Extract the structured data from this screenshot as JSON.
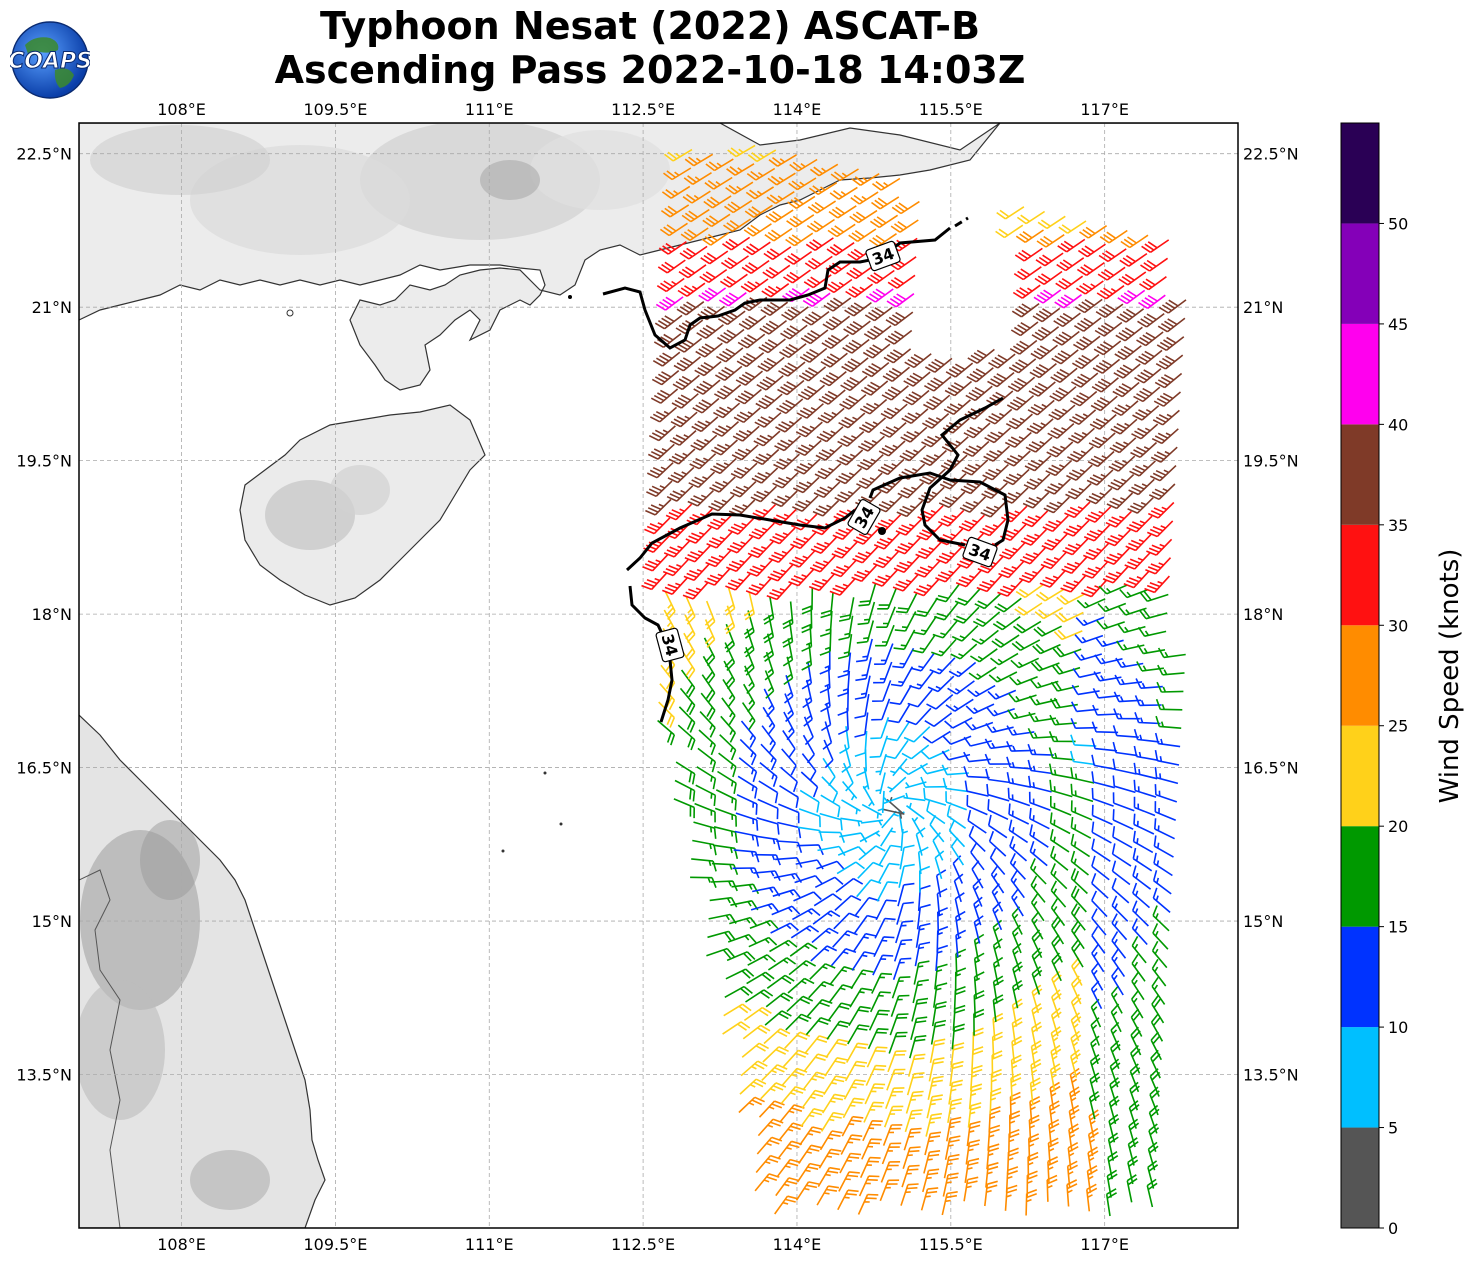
{
  "title": {
    "line1": "Typhoon Nesat (2022) ASCAT-B",
    "line2": "Ascending Pass 2022-10-18 14:03Z"
  },
  "logo": {
    "text": "COAPS",
    "icon": "globe-logo-icon"
  },
  "map": {
    "lon_range": [
      107.0,
      118.3
    ],
    "lat_range": [
      12.0,
      22.8
    ],
    "lon_ticks": [
      "108°E",
      "109.5°E",
      "111°E",
      "112.5°E",
      "114°E",
      "115.5°E",
      "117°E"
    ],
    "lat_ticks": [
      "22.5°N",
      "21°N",
      "19.5°N",
      "18°N",
      "16.5°N",
      "15°N",
      "13.5°N"
    ],
    "gridlines": "dashed",
    "contour_label": "34"
  },
  "colorbar": {
    "label": "Wind Speed (knots)",
    "tick_labels": [
      "0",
      "5",
      "10",
      "15",
      "20",
      "25",
      "30",
      "35",
      "40",
      "45",
      "50"
    ],
    "bins": [
      {
        "min": 0,
        "max": 5,
        "color": "#555555"
      },
      {
        "min": 5,
        "max": 10,
        "color": "#00bfff"
      },
      {
        "min": 10,
        "max": 15,
        "color": "#0033ff"
      },
      {
        "min": 15,
        "max": 20,
        "color": "#009900"
      },
      {
        "min": 20,
        "max": 25,
        "color": "#ffd11a"
      },
      {
        "min": 25,
        "max": 30,
        "color": "#ff8c00"
      },
      {
        "min": 30,
        "max": 35,
        "color": "#ff1111"
      },
      {
        "min": 35,
        "max": 40,
        "color": "#7f3a28"
      },
      {
        "min": 40,
        "max": 45,
        "color": "#ff00ee"
      },
      {
        "min": 45,
        "max": 50,
        "color": "#8400b8"
      },
      {
        "min": 50,
        "max": 55,
        "color": "#2a0055"
      }
    ]
  }
}
